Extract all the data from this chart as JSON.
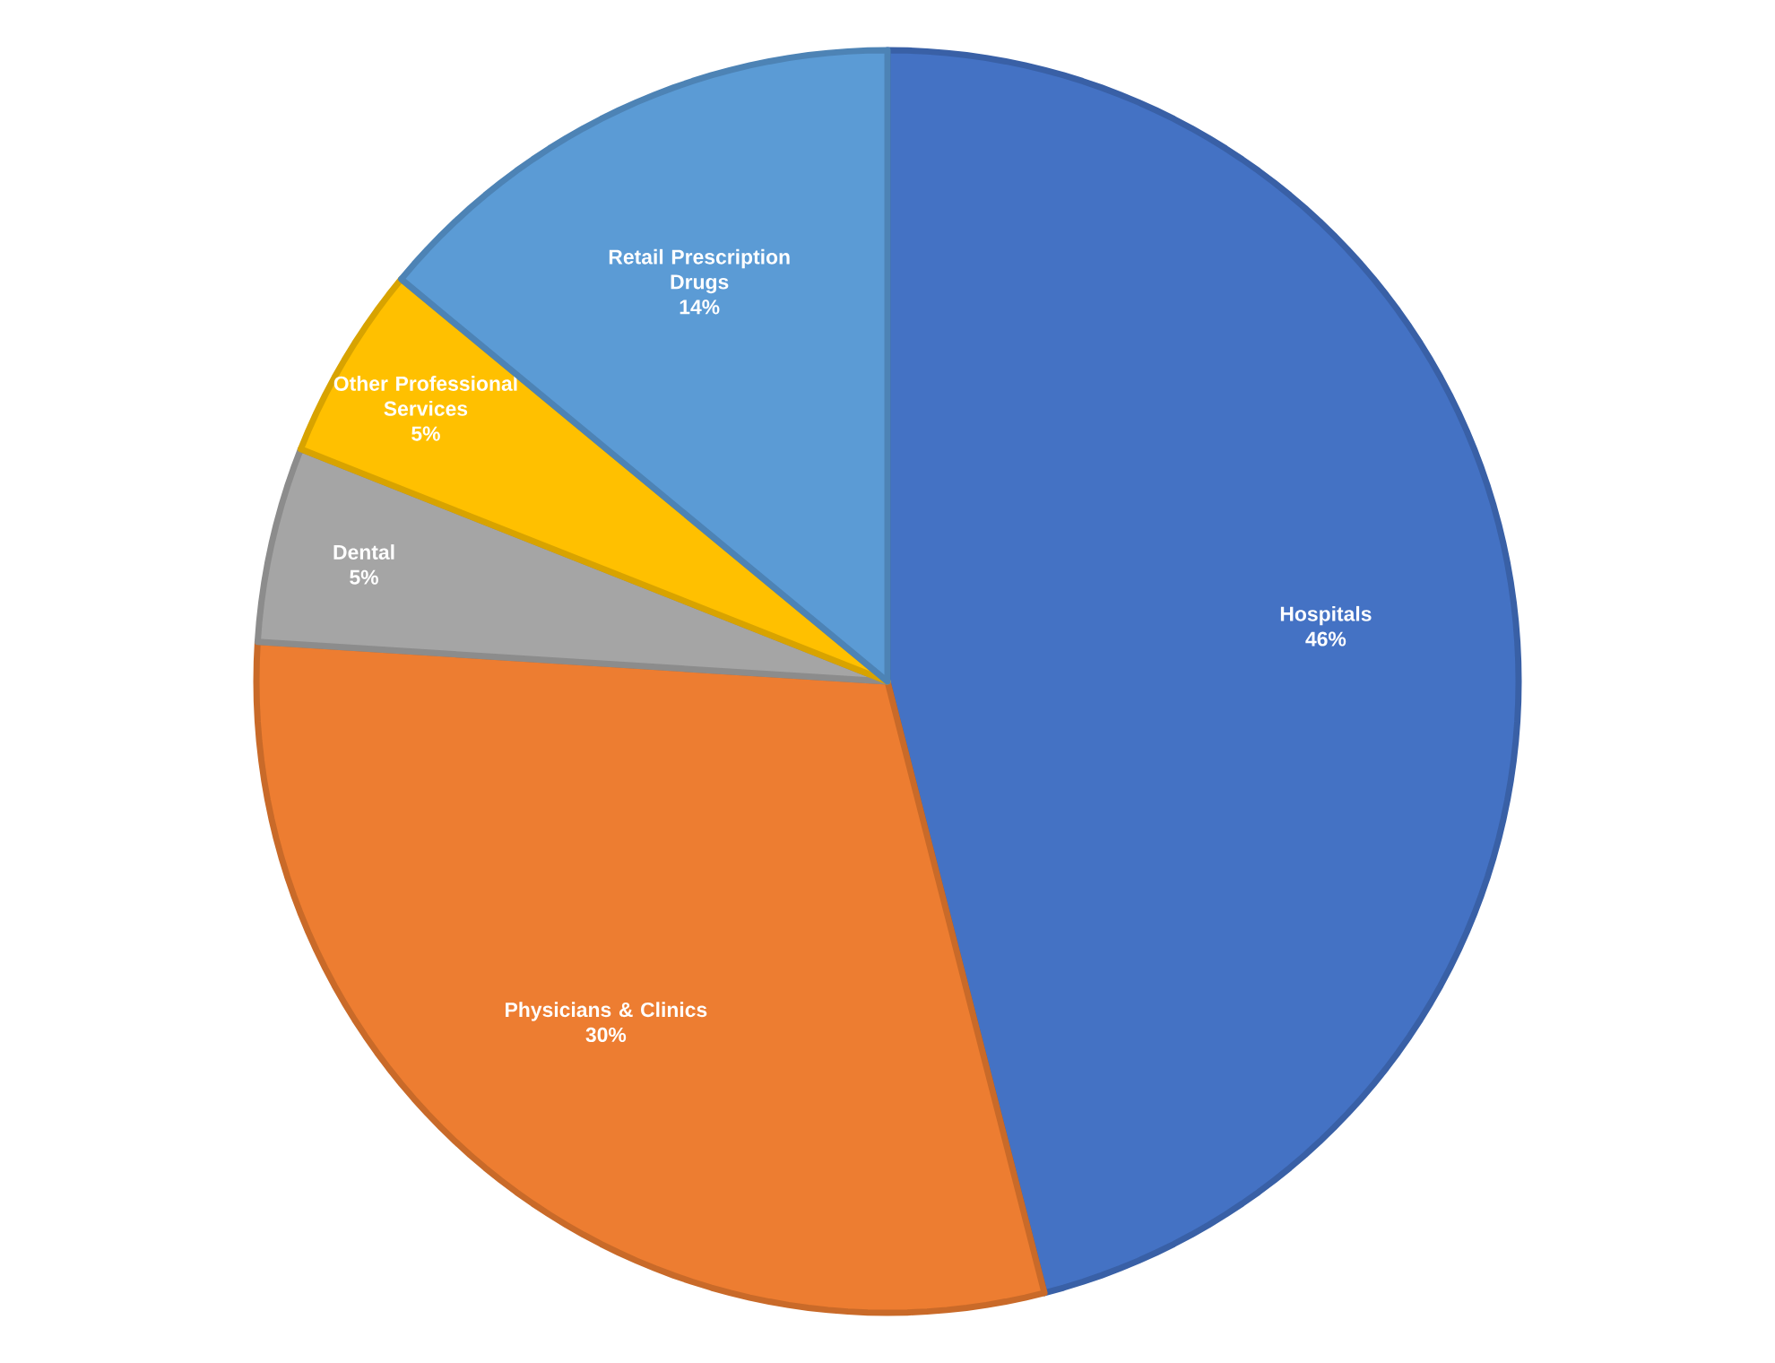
{
  "chart_data": {
    "type": "pie",
    "categories": [
      "Hospitals",
      "Physicians & Clinics",
      "Dental",
      "Other Professional Services",
      "Retail Prescription Drugs"
    ],
    "values": [
      46,
      30,
      5,
      5,
      14
    ],
    "value_labels": [
      "46%",
      "30%",
      "5%",
      "5%",
      "14%"
    ],
    "colors": [
      "#4472c4",
      "#ed7d31",
      "#a5a5a5",
      "#ffc000",
      "#5b9bd5"
    ]
  }
}
